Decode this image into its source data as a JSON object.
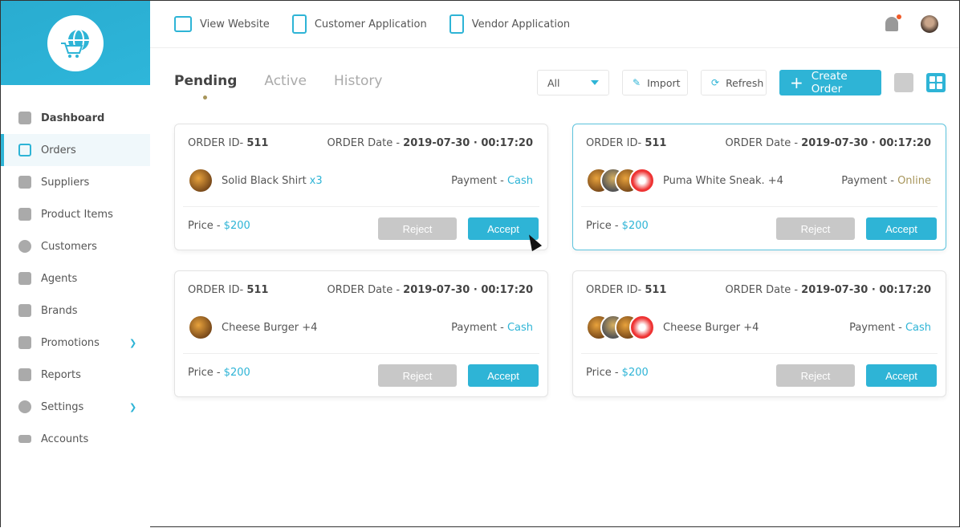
{
  "sidebar": {
    "items": [
      {
        "label": "Dashboard",
        "icon": "bar-chart-icon"
      },
      {
        "label": "Orders",
        "icon": "orders-icon"
      },
      {
        "label": "Suppliers",
        "icon": "suppliers-icon"
      },
      {
        "label": "Product Items",
        "icon": "box-icon"
      },
      {
        "label": "Customers",
        "icon": "customer-icon"
      },
      {
        "label": "Agents",
        "icon": "agent-icon"
      },
      {
        "label": "Brands",
        "icon": "tag-icon"
      },
      {
        "label": "Promotions",
        "icon": "megaphone-icon"
      },
      {
        "label": "Reports",
        "icon": "reports-icon"
      },
      {
        "label": "Settings",
        "icon": "gear-icon"
      },
      {
        "label": "Accounts",
        "icon": "card-icon"
      }
    ]
  },
  "topbar": {
    "links": [
      "View Website",
      "Customer Application",
      "Vendor Application"
    ]
  },
  "tabs": [
    "Pending",
    "Active",
    "History"
  ],
  "toolbar": {
    "filter": "All",
    "import": "Import",
    "refresh": "Refresh",
    "create": "Create Order",
    "plus": "+"
  },
  "accent": "#2eb4d6",
  "orders": [
    {
      "id_label": "ORDER ID- ",
      "id": "511",
      "date_label": "ORDER Date - ",
      "date": "2019-07-30 · 00:17:20",
      "item": "Solid Black Shirt",
      "qty": "x3",
      "pay_label": "Payment - ",
      "pay": "Cash",
      "price_label": "Price - ",
      "price": "$200",
      "reject": "Reject",
      "accept": "Accept"
    },
    {
      "id_label": "ORDER ID- ",
      "id": "511",
      "date_label": "ORDER Date - ",
      "date": "2019-07-30 · 00:17:20",
      "item": "Puma White Sneak. +4",
      "qty": "",
      "pay_label": "Payment - ",
      "pay": "Online",
      "price_label": "Price - ",
      "price": "$200",
      "reject": "Reject",
      "accept": "Accept"
    },
    {
      "id_label": "ORDER ID- ",
      "id": "511",
      "date_label": "ORDER Date - ",
      "date": "2019-07-30 · 00:17:20",
      "item": "Cheese Burger +4",
      "qty": "",
      "pay_label": "Payment - ",
      "pay": "Cash",
      "price_label": "Price - ",
      "price": "$200",
      "reject": "Reject",
      "accept": "Accept"
    },
    {
      "id_label": "ORDER ID- ",
      "id": "511",
      "date_label": "ORDER Date - ",
      "date": "2019-07-30 · 00:17:20",
      "item": "Cheese Burger +4",
      "qty": "",
      "pay_label": "Payment - ",
      "pay": "Cash",
      "price_label": "Price - ",
      "price": "$200",
      "reject": "Reject",
      "accept": "Accept"
    }
  ]
}
